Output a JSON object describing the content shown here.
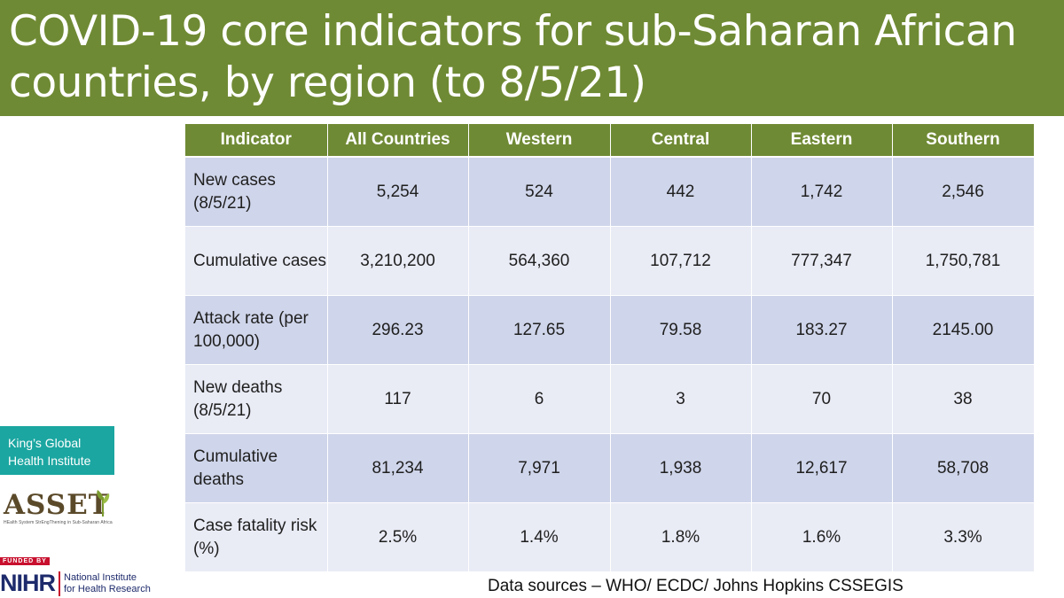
{
  "title": "COVID-19 core indicators for sub-Saharan African countries, by region (to 8/5/21)",
  "table": {
    "headers": [
      "Indicator",
      "All Countries",
      "Western",
      "Central",
      "Eastern",
      "Southern"
    ],
    "rows": [
      {
        "label": "New cases (8/5/21)",
        "values": [
          "5,254",
          "524",
          "442",
          "1,742",
          "2,546"
        ]
      },
      {
        "label": "Cumulative cases",
        "values": [
          "3,210,200",
          "564,360",
          "107,712",
          "777,347",
          "1,750,781"
        ]
      },
      {
        "label": "Attack rate (per 100,000)",
        "values": [
          "296.23",
          "127.65",
          "79.58",
          "183.27",
          "2145.00"
        ]
      },
      {
        "label": "New deaths (8/5/21)",
        "values": [
          "117",
          "6",
          "3",
          "70",
          "38"
        ]
      },
      {
        "label": "Cumulative deaths",
        "values": [
          "81,234",
          "7,971",
          "1,938",
          "12,617",
          "58,708"
        ]
      },
      {
        "label": "Case fatality risk (%)",
        "values": [
          "2.5%",
          "1.4%",
          "1.8%",
          "1.6%",
          "3.3%"
        ]
      }
    ]
  },
  "source": "Data sources – WHO/ ECDC/ Johns Hopkins CSSEGIS",
  "logos": {
    "kings": "King’s Global Health Institute",
    "asset": "ASSET",
    "asset_tagline": "HEalth System StrEngThening in Sub-Saharan Africa",
    "funded_by": "FUNDED BY",
    "nihr": "NIHR",
    "nihr_name_line1": "National Institute",
    "nihr_name_line2": "for Health Research"
  },
  "colors": {
    "header_green": "#6f8a34",
    "row_dark": "#cfd5ea",
    "row_light": "#e9ebf5",
    "kings_teal": "#1ba6a1",
    "nihr_red": "#c8102e",
    "nihr_navy": "#1d2a6b"
  }
}
